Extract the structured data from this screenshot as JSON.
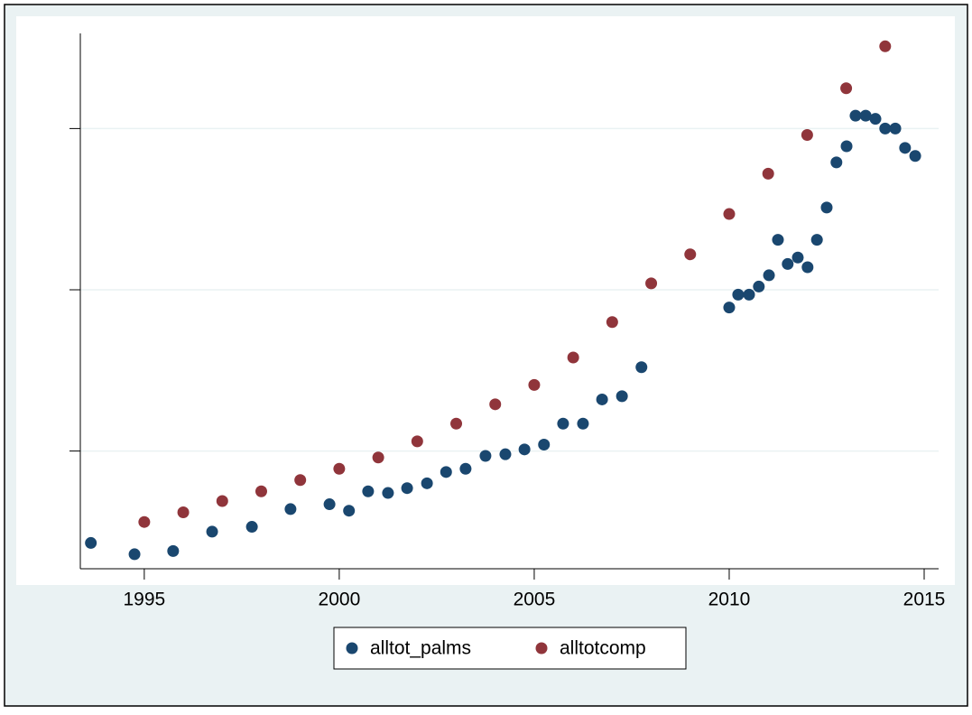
{
  "chart_data": {
    "type": "scatter",
    "xlim": [
      1993.36,
      2015.37
    ],
    "ylim": [
      0.27,
      3.59
    ],
    "xticks": [
      1995,
      2000,
      2005,
      2010,
      2015
    ],
    "yticks": [
      1,
      2,
      3
    ],
    "grid": true,
    "legend": "bottom",
    "series": [
      {
        "name": "alltot_palms",
        "color": "#1a476f",
        "x": [
          1993.63,
          1994.75,
          1995.74,
          1996.74,
          1997.76,
          1998.75,
          1999.75,
          2000.25,
          2000.74,
          2001.25,
          2001.74,
          2002.25,
          2002.74,
          2003.24,
          2003.75,
          2004.26,
          2004.75,
          2005.25,
          2005.74,
          2006.25,
          2006.74,
          2007.25,
          2007.75,
          2010.0,
          2010.23,
          2010.51,
          2010.76,
          2011.02,
          2011.25,
          2011.5,
          2011.76,
          2012.01,
          2012.25,
          2012.5,
          2012.75,
          2013.01,
          2013.24,
          2013.5,
          2013.75,
          2014.0,
          2014.26,
          2014.51,
          2014.77
        ],
        "values": [
          0.43,
          0.36,
          0.38,
          0.5,
          0.53,
          0.64,
          0.67,
          0.63,
          0.75,
          0.74,
          0.77,
          0.8,
          0.87,
          0.89,
          0.97,
          0.98,
          1.01,
          1.04,
          1.17,
          1.17,
          1.32,
          1.34,
          1.52,
          1.89,
          1.97,
          1.97,
          2.02,
          2.09,
          2.31,
          2.16,
          2.2,
          2.14,
          2.31,
          2.51,
          2.79,
          2.89,
          3.08,
          3.08,
          3.06,
          3.0,
          3.0,
          2.88,
          2.83
        ]
      },
      {
        "name": "alltotcomp",
        "color": "#90353b",
        "x": [
          1995,
          1996,
          1997,
          1998,
          1999,
          2000,
          2001,
          2002,
          2003,
          2004,
          2005,
          2006,
          2007,
          2008,
          2009,
          2010,
          2011,
          2012,
          2013,
          2014
        ],
        "values": [
          0.56,
          0.62,
          0.69,
          0.75,
          0.82,
          0.89,
          0.96,
          1.06,
          1.17,
          1.29,
          1.41,
          1.58,
          1.8,
          2.04,
          2.22,
          2.47,
          2.72,
          2.96,
          3.25,
          3.51
        ]
      }
    ]
  }
}
